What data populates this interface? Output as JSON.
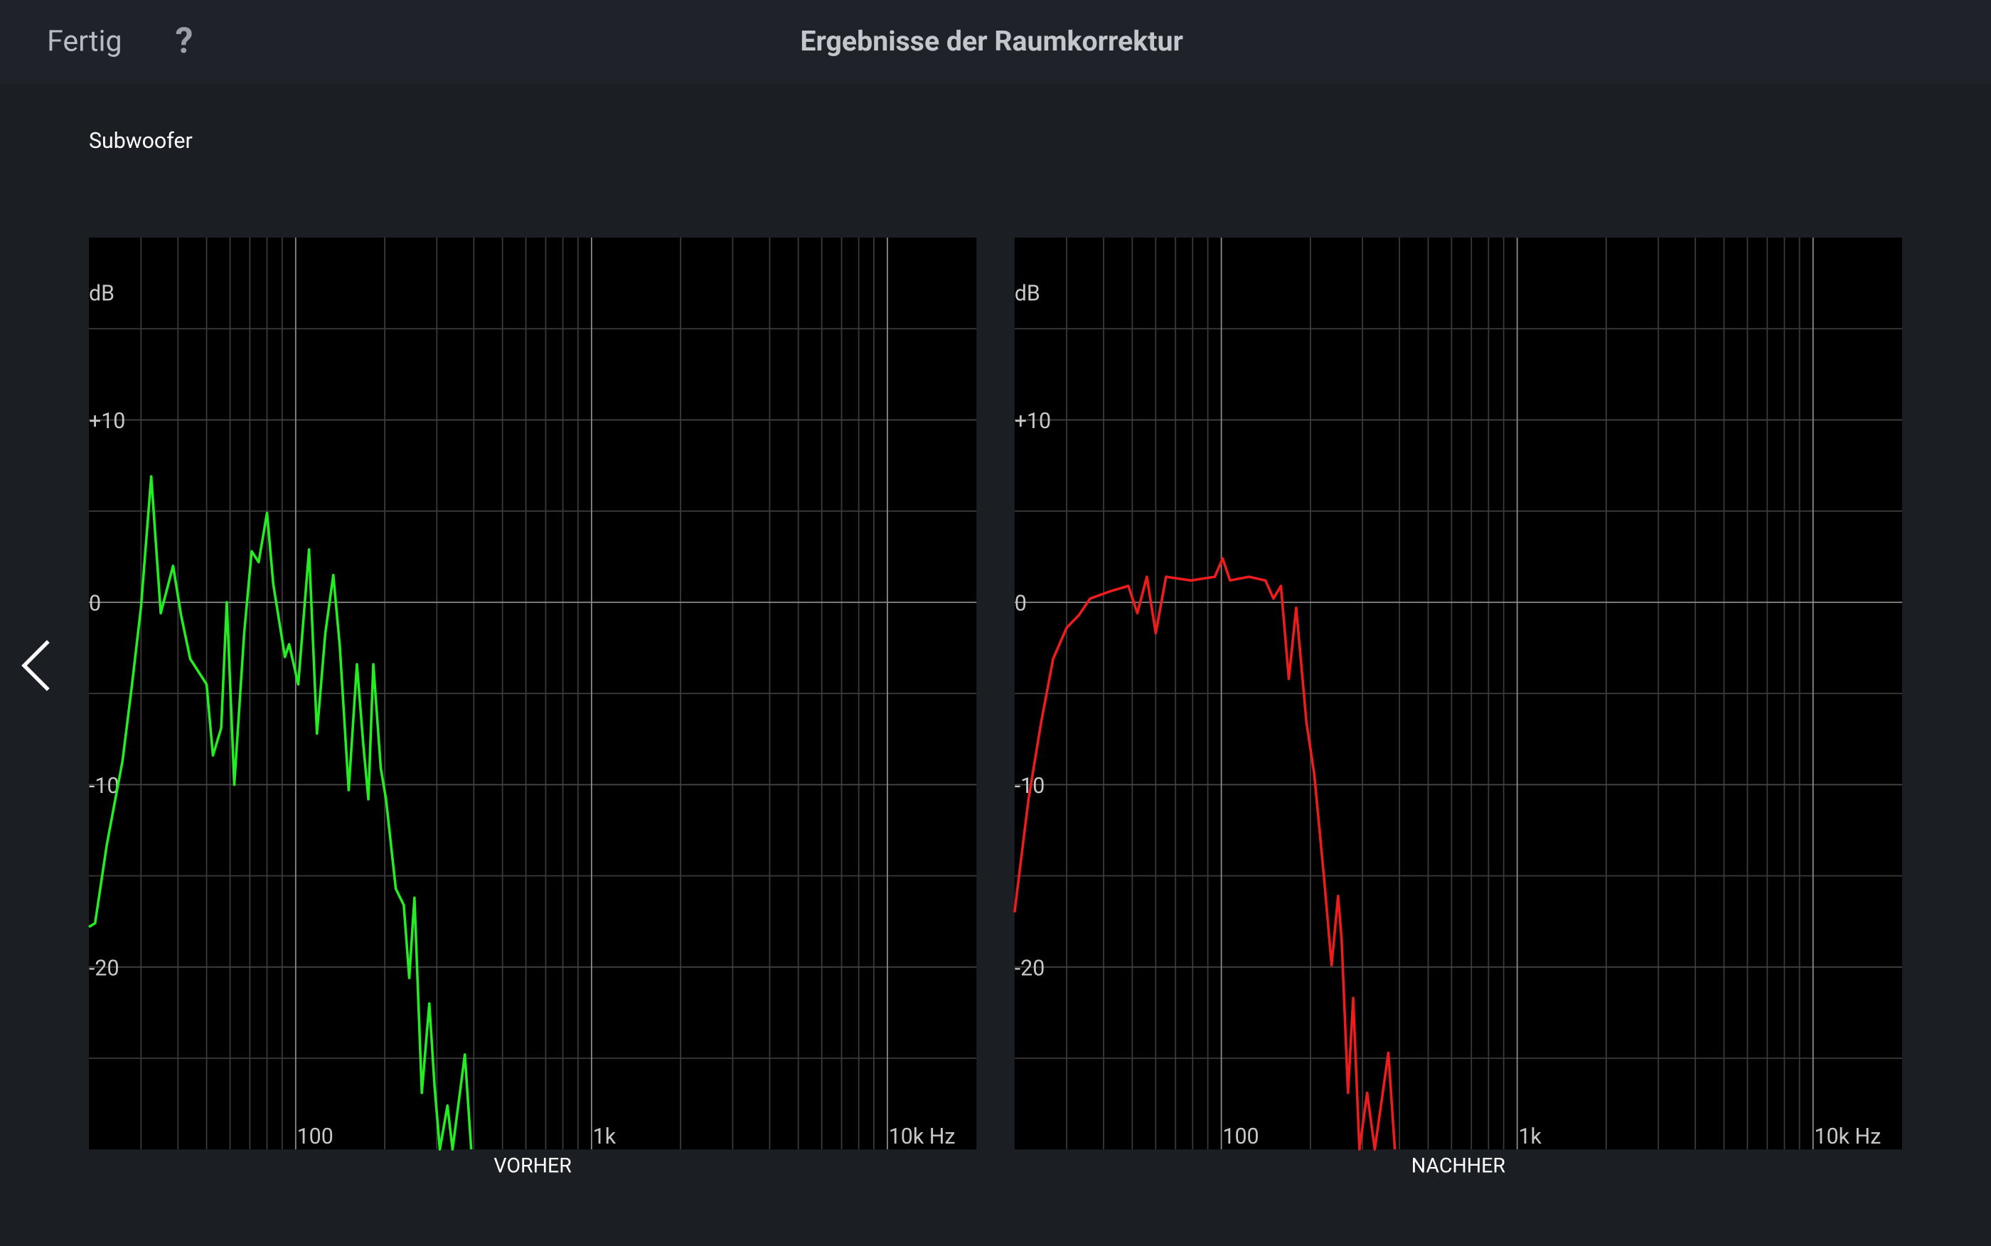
{
  "header": {
    "done": "Fertig",
    "help": "?",
    "title": "Ergebnisse der Raumkorrektur"
  },
  "section_label": "Subwoofer",
  "chart_data": [
    {
      "type": "line",
      "xlabel": "VORHER",
      "ylabel": "dB",
      "xscale": "log",
      "color": "#22ee22",
      "xlim": [
        20,
        20000
      ],
      "ylim": [
        -30,
        20
      ],
      "xticks": [
        100,
        {
          "value": 1000,
          "label": "1k"
        },
        {
          "value": 10000,
          "label": "10k Hz"
        }
      ],
      "xgrid": [
        30,
        40,
        50,
        60,
        70,
        80,
        90,
        200,
        300,
        400,
        500,
        600,
        700,
        800,
        900,
        2000,
        3000,
        4000,
        5000,
        6000,
        7000,
        8000,
        9000
      ],
      "yticks": [
        {
          "value": 10,
          "label": "+10"
        },
        0,
        -10,
        -20
      ],
      "ygrid": [
        15,
        5,
        -5,
        -15,
        -25
      ],
      "x": [
        20,
        21,
        23,
        26,
        28,
        30,
        32.5,
        35,
        38.5,
        41,
        44,
        50,
        52.5,
        56,
        58.5,
        62,
        67,
        71,
        75,
        80,
        84,
        92,
        95,
        102,
        111,
        118,
        126,
        134,
        141,
        151,
        161,
        169,
        176,
        183,
        194,
        202,
        218,
        232,
        242,
        252,
        267,
        283,
        295,
        307,
        326,
        339,
        373,
        392
      ],
      "values": [
        -17.8,
        -17.6,
        -13.3,
        -8.7,
        -4.5,
        -0.3,
        6.9,
        -0.6,
        2,
        -0.7,
        -3.1,
        -4.5,
        -8.4,
        -6.9,
        0,
        -10,
        -1.7,
        2.8,
        2.2,
        4.9,
        1,
        -3,
        -2.3,
        -4.5,
        2.9,
        -7.2,
        -1.7,
        1.5,
        -2.4,
        -10.3,
        -3.4,
        -7.7,
        -10.8,
        -3.4,
        -9.1,
        -10.8,
        -15.7,
        -16.6,
        -20.6,
        -16.2,
        -26.9,
        -22,
        -26.6,
        -30,
        -27.6,
        -30,
        -24.8,
        -30
      ]
    },
    {
      "type": "line",
      "xlabel": "NACHHER",
      "ylabel": "dB",
      "xscale": "log",
      "color": "#ee1c1c",
      "xlim": [
        20,
        20000
      ],
      "ylim": [
        -30,
        20
      ],
      "xticks": [
        100,
        {
          "value": 1000,
          "label": "1k"
        },
        {
          "value": 10000,
          "label": "10k Hz"
        }
      ],
      "xgrid": [
        30,
        40,
        50,
        60,
        70,
        80,
        90,
        200,
        300,
        400,
        500,
        600,
        700,
        800,
        900,
        2000,
        3000,
        4000,
        5000,
        6000,
        7000,
        8000,
        9000
      ],
      "yticks": [
        {
          "value": 10,
          "label": "+10"
        },
        0,
        -10,
        -20
      ],
      "ygrid": [
        15,
        5,
        -5,
        -15,
        -25
      ],
      "x": [
        20,
        22.3,
        24.6,
        27,
        30,
        33,
        36,
        42,
        48.5,
        52,
        56,
        60,
        65,
        79,
        95,
        101,
        107,
        124,
        141,
        150,
        159,
        169,
        179,
        194,
        206,
        222,
        236,
        248,
        255,
        268,
        279,
        293,
        311,
        330,
        367,
        386
      ],
      "values": [
        -17,
        -10.8,
        -6.6,
        -3.1,
        -1.4,
        -0.7,
        0.2,
        0.6,
        0.9,
        -0.6,
        1.4,
        -1.7,
        1.4,
        1.2,
        1.4,
        2.4,
        1.2,
        1.4,
        1.2,
        0.2,
        0.9,
        -4.2,
        -0.3,
        -6.6,
        -9.4,
        -15,
        -19.9,
        -16.1,
        -18.5,
        -26.9,
        -21.7,
        -30,
        -26.9,
        -30,
        -24.7,
        -30
      ]
    }
  ]
}
